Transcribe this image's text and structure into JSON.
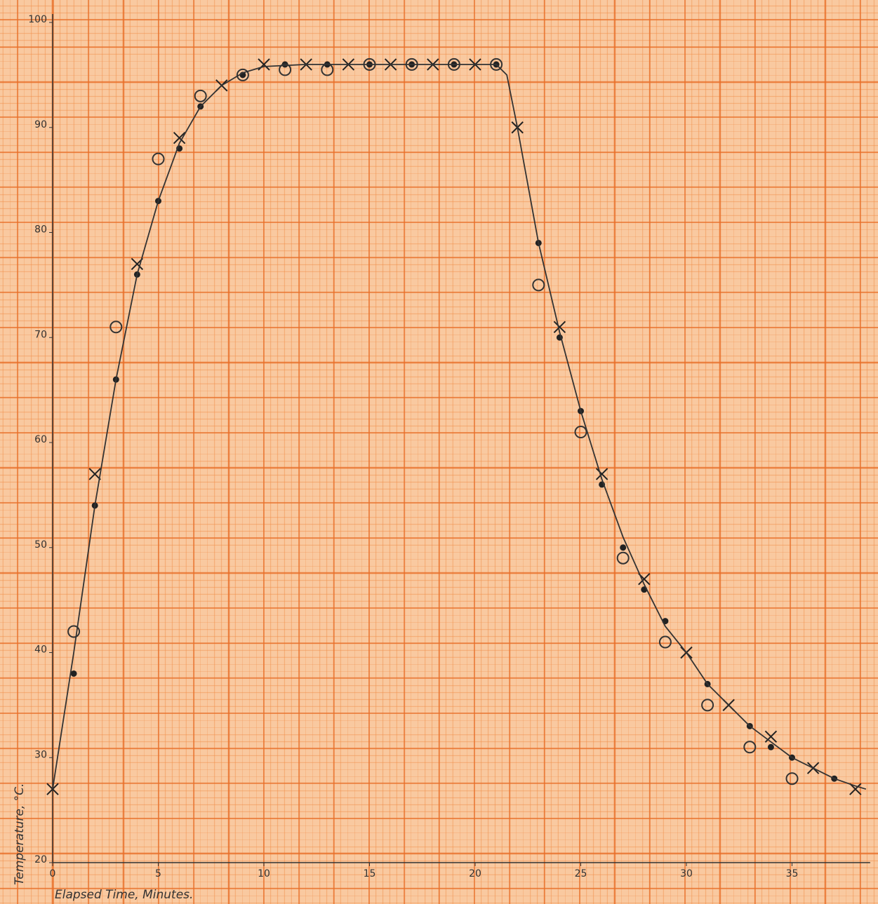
{
  "chart_data": {
    "type": "scatter",
    "x_label": "Elapsed Time, Minutes.",
    "y_label": "Temperature, °C.",
    "xlim": [
      0,
      38.5
    ],
    "ylim": [
      20,
      100
    ],
    "xticks": [
      0,
      5,
      10,
      15,
      20,
      25,
      30,
      35
    ],
    "yticks": [
      20,
      30,
      40,
      50,
      60,
      70,
      80,
      90,
      100
    ],
    "series": [
      {
        "marker": "cross",
        "color": "#222222",
        "x": [
          0,
          2,
          4,
          6,
          8,
          10,
          12,
          14,
          16,
          18,
          20,
          22,
          24,
          26,
          28,
          30,
          32,
          34,
          36,
          38
        ],
        "values": [
          27,
          57,
          77,
          89,
          94,
          96,
          96,
          96,
          96,
          96,
          96,
          90,
          71,
          57,
          47,
          40,
          35,
          32,
          29,
          27
        ]
      },
      {
        "marker": "dot",
        "color": "#222222",
        "x": [
          1,
          2,
          3,
          4,
          5,
          6,
          7,
          9,
          11,
          13,
          15,
          17,
          19,
          21,
          23,
          24,
          25,
          26,
          27,
          28,
          29,
          31,
          33,
          34,
          35,
          37
        ],
        "values": [
          38,
          54,
          66,
          76,
          83,
          88,
          92,
          95,
          96,
          96,
          96,
          96,
          96,
          96,
          79,
          70,
          63,
          56,
          50,
          46,
          43,
          37,
          33,
          31,
          30,
          28
        ]
      },
      {
        "marker": "circle",
        "color": "#333333",
        "x": [
          1,
          3,
          5,
          7,
          9,
          11,
          13,
          15,
          17,
          19,
          21,
          23,
          25,
          27,
          29,
          31,
          33,
          35
        ],
        "values": [
          42,
          71,
          87,
          93,
          95,
          95.5,
          95.5,
          96,
          96,
          96,
          96,
          75,
          61,
          49,
          41,
          35,
          31,
          28
        ]
      },
      {
        "marker": "curve",
        "color": "#333333",
        "x": [
          0,
          1,
          2,
          3,
          4,
          5,
          6,
          7,
          8,
          9,
          10,
          12,
          21,
          21.5,
          22,
          23,
          24,
          25,
          26,
          27,
          28,
          29,
          30,
          31,
          32,
          33,
          34,
          35,
          36,
          37,
          38,
          38.5
        ],
        "values": [
          27,
          40,
          54,
          66,
          76,
          83,
          88.5,
          92,
          94,
          95.2,
          95.8,
          96,
          96,
          95,
          90,
          79,
          70.5,
          63,
          56.5,
          51,
          46.5,
          42.5,
          40,
          37,
          35,
          33,
          31.5,
          30,
          29,
          28,
          27.3,
          27
        ]
      }
    ]
  }
}
